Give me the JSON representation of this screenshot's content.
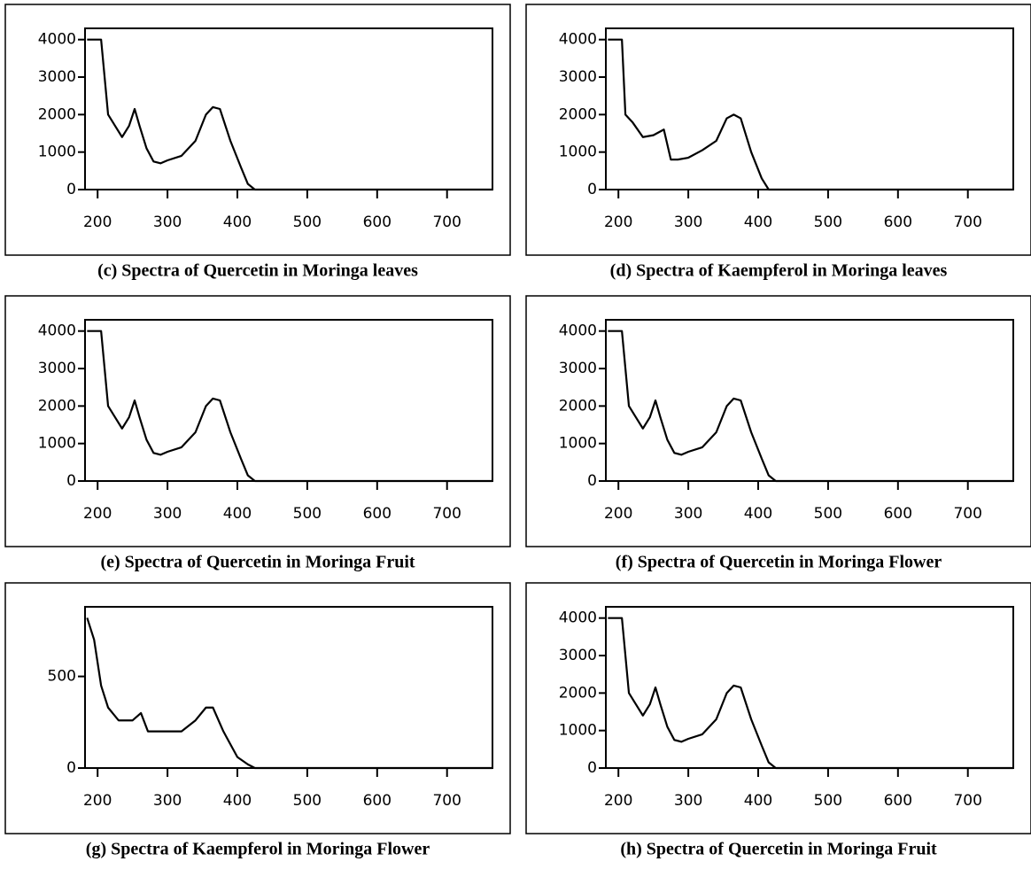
{
  "chart_data": [
    {
      "type": "line",
      "title": "(c) Spectra of Quercetin in Moringa leaves",
      "x": [
        185,
        205,
        210,
        215,
        225,
        235,
        245,
        253,
        260,
        270,
        280,
        290,
        300,
        320,
        340,
        355,
        365,
        375,
        390,
        405,
        415,
        425,
        765
      ],
      "series": [
        {
          "color": "#000000",
          "values": [
            4000,
            4000,
            3000,
            2000,
            1700,
            1400,
            1700,
            2150,
            1700,
            1100,
            750,
            700,
            780,
            900,
            1300,
            2000,
            2200,
            2150,
            1300,
            600,
            150,
            0,
            0
          ]
        }
      ],
      "xlim": [
        182,
        765
      ],
      "ylim": [
        0,
        4300
      ],
      "xticks": [
        200,
        300,
        400,
        500,
        600,
        700
      ],
      "yticks": [
        0,
        1000,
        2000,
        3000,
        4000
      ]
    },
    {
      "type": "line",
      "title": "(d) Spectra of Kaempferol in Moringa leaves",
      "x": [
        185,
        205,
        210,
        220,
        235,
        250,
        265,
        275,
        285,
        300,
        320,
        340,
        355,
        365,
        375,
        390,
        405,
        415,
        765
      ],
      "series": [
        {
          "color": "#000000",
          "values": [
            4000,
            4000,
            2000,
            1800,
            1400,
            1450,
            1600,
            800,
            800,
            850,
            1050,
            1300,
            1900,
            2000,
            1900,
            1000,
            300,
            0,
            0
          ]
        }
      ],
      "xlim": [
        182,
        765
      ],
      "ylim": [
        0,
        4300
      ],
      "xticks": [
        200,
        300,
        400,
        500,
        600,
        700
      ],
      "yticks": [
        0,
        1000,
        2000,
        3000,
        4000
      ]
    },
    {
      "type": "line",
      "title": "(e) Spectra of Quercetin in Moringa Fruit",
      "x": [
        185,
        205,
        210,
        215,
        225,
        235,
        245,
        253,
        260,
        270,
        280,
        290,
        300,
        320,
        340,
        355,
        365,
        375,
        390,
        405,
        415,
        425,
        765
      ],
      "series": [
        {
          "color": "#000000",
          "values": [
            4000,
            4000,
            3000,
            2000,
            1700,
            1400,
            1700,
            2150,
            1700,
            1100,
            750,
            700,
            780,
            900,
            1300,
            2000,
            2200,
            2150,
            1300,
            600,
            150,
            0,
            0
          ]
        }
      ],
      "xlim": [
        182,
        765
      ],
      "ylim": [
        0,
        4300
      ],
      "xticks": [
        200,
        300,
        400,
        500,
        600,
        700
      ],
      "yticks": [
        0,
        1000,
        2000,
        3000,
        4000
      ]
    },
    {
      "type": "line",
      "title": "(f) Spectra of Quercetin in Moringa Flower",
      "x": [
        185,
        205,
        210,
        215,
        225,
        235,
        245,
        253,
        260,
        270,
        280,
        290,
        300,
        320,
        340,
        355,
        365,
        375,
        390,
        405,
        415,
        425,
        765
      ],
      "series": [
        {
          "color": "#000000",
          "values": [
            4000,
            4000,
            3000,
            2000,
            1700,
            1400,
            1700,
            2150,
            1700,
            1100,
            750,
            700,
            780,
            900,
            1300,
            2000,
            2200,
            2150,
            1300,
            600,
            150,
            0,
            0
          ]
        }
      ],
      "xlim": [
        182,
        765
      ],
      "ylim": [
        0,
        4300
      ],
      "xticks": [
        200,
        300,
        400,
        500,
        600,
        700
      ],
      "yticks": [
        0,
        1000,
        2000,
        3000,
        4000
      ]
    },
    {
      "type": "line",
      "title": "(g) Spectra of Kaempferol in Moringa Flower",
      "x": [
        185,
        195,
        205,
        215,
        230,
        250,
        262,
        272,
        285,
        320,
        340,
        355,
        365,
        380,
        400,
        415,
        425,
        765
      ],
      "series": [
        {
          "color": "#000000",
          "values": [
            820,
            700,
            450,
            330,
            260,
            260,
            300,
            200,
            200,
            200,
            260,
            330,
            330,
            200,
            60,
            20,
            0,
            0
          ]
        }
      ],
      "xlim": [
        182,
        765
      ],
      "ylim": [
        0,
        880
      ],
      "xticks": [
        200,
        300,
        400,
        500,
        600,
        700
      ],
      "yticks": [
        0,
        500
      ]
    },
    {
      "type": "line",
      "title": "(h) Spectra of Quercetin in Moringa Fruit",
      "x": [
        185,
        205,
        210,
        215,
        225,
        235,
        245,
        253,
        260,
        270,
        280,
        290,
        300,
        320,
        340,
        355,
        365,
        375,
        390,
        405,
        415,
        425,
        765
      ],
      "series": [
        {
          "color": "#000000",
          "values": [
            4000,
            4000,
            3000,
            2000,
            1700,
            1400,
            1700,
            2150,
            1700,
            1100,
            750,
            700,
            780,
            900,
            1300,
            2000,
            2200,
            2150,
            1300,
            600,
            150,
            0,
            0
          ]
        }
      ],
      "xlim": [
        182,
        765
      ],
      "ylim": [
        0,
        4300
      ],
      "xticks": [
        200,
        300,
        400,
        500,
        600,
        700
      ],
      "yticks": [
        0,
        1000,
        2000,
        3000,
        4000
      ]
    }
  ]
}
